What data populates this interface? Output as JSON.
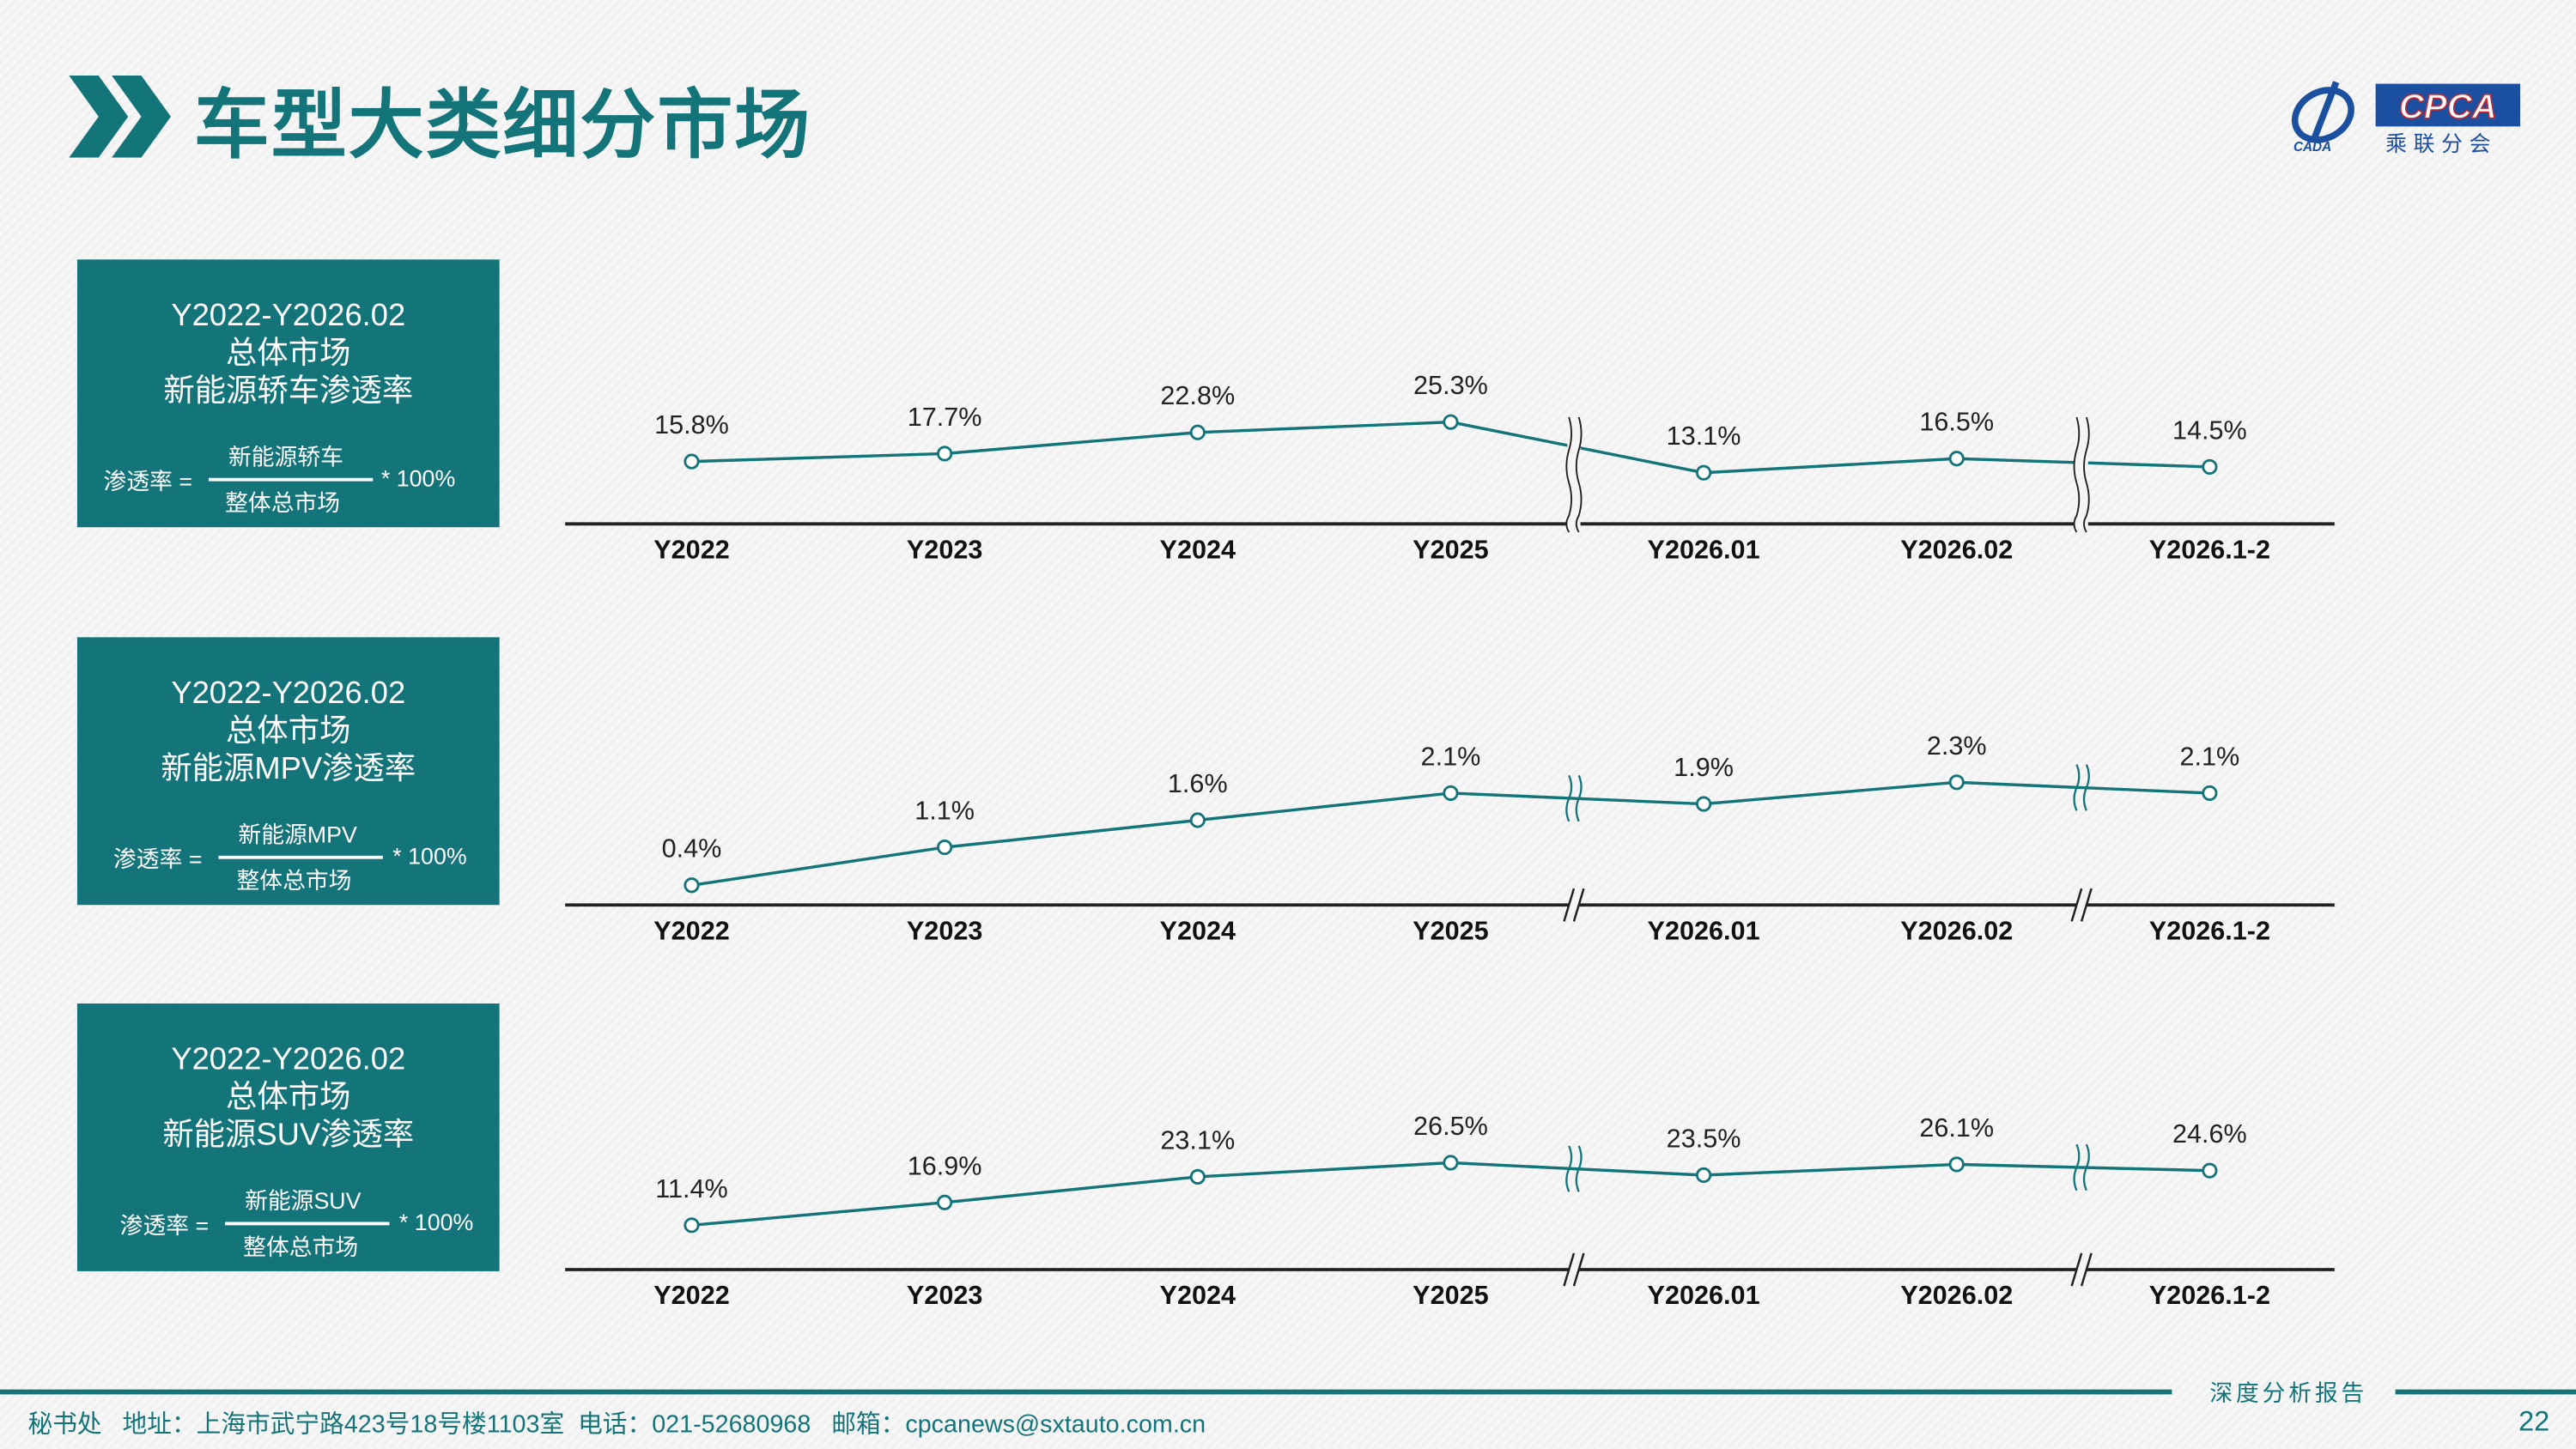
{
  "header": {
    "title": "车型大类细分市场",
    "logo_text": "CPCA",
    "logo_sub": "乘联分会",
    "logo_small": "CADA"
  },
  "colors": {
    "accent": "#137479",
    "logo_blue": "#1b4fa0",
    "logo_red": "#d0262b"
  },
  "boxes": [
    {
      "period": "Y2022-Y2026.02",
      "market": "总体市场",
      "metric": "新能源轿车渗透率",
      "lhs": "渗透率 =",
      "numerator": "新能源轿车",
      "denominator": "整体总市场",
      "rhs": "* 100%"
    },
    {
      "period": "Y2022-Y2026.02",
      "market": "总体市场",
      "metric": "新能源MPV渗透率",
      "lhs": "渗透率 =",
      "numerator": "新能源MPV",
      "denominator": "整体总市场",
      "rhs": "* 100%"
    },
    {
      "period": "Y2022-Y2026.02",
      "market": "总体市场",
      "metric": "新能源SUV渗透率",
      "lhs": "渗透率 =",
      "numerator": "新能源SUV",
      "denominator": "整体总市场",
      "rhs": "* 100%"
    }
  ],
  "chart_data": [
    {
      "type": "line",
      "categories": [
        "Y2022",
        "Y2023",
        "Y2024",
        "Y2025",
        "Y2026.01",
        "Y2026.02",
        "Y2026.1-2"
      ],
      "values": [
        15.8,
        17.7,
        22.8,
        25.3,
        13.1,
        16.5,
        14.5
      ],
      "labels": [
        "15.8%",
        "17.7%",
        "22.8%",
        "25.3%",
        "13.1%",
        "16.5%",
        "14.5%"
      ],
      "axis_breaks": [
        "Y2025|Y2026.01",
        "Y2026.02|Y2026.1-2"
      ]
    },
    {
      "type": "line",
      "categories": [
        "Y2022",
        "Y2023",
        "Y2024",
        "Y2025",
        "Y2026.01",
        "Y2026.02",
        "Y2026.1-2"
      ],
      "values": [
        0.4,
        1.1,
        1.6,
        2.1,
        1.9,
        2.3,
        2.1
      ],
      "labels": [
        "0.4%",
        "1.1%",
        "1.6%",
        "2.1%",
        "1.9%",
        "2.3%",
        "2.1%"
      ],
      "axis_breaks": [
        "Y2025|Y2026.01",
        "Y2026.02|Y2026.1-2"
      ]
    },
    {
      "type": "line",
      "categories": [
        "Y2022",
        "Y2023",
        "Y2024",
        "Y2025",
        "Y2026.01",
        "Y2026.02",
        "Y2026.1-2"
      ],
      "values": [
        11.4,
        16.9,
        23.1,
        26.5,
        23.5,
        26.1,
        24.6
      ],
      "labels": [
        "11.4%",
        "16.9%",
        "23.1%",
        "26.5%",
        "23.5%",
        "26.1%",
        "24.6%"
      ],
      "axis_breaks": [
        "Y2025|Y2026.01",
        "Y2026.02|Y2026.1-2"
      ]
    }
  ],
  "footer": {
    "address": "秘书处   地址：上海市武宁路423号18号楼1103室  电话：021-52680968   邮箱：cpcanews@sxtauto.com.cn",
    "report_label": "深度分析报告",
    "page": "22"
  }
}
